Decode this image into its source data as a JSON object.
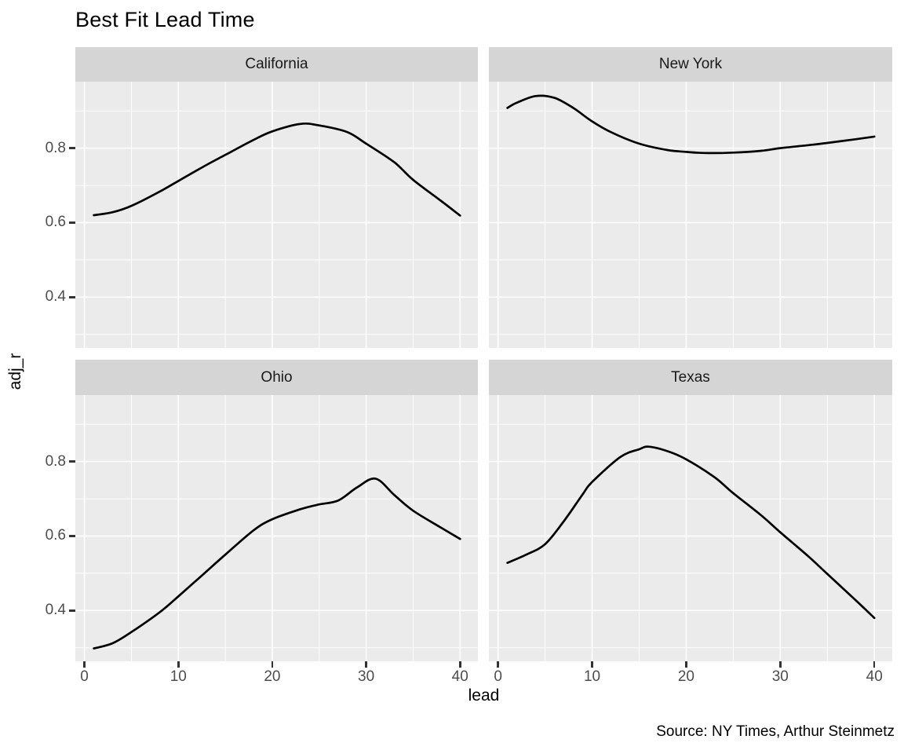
{
  "title": "Best Fit Lead Time",
  "source_note": "Source: NY Times, Arthur Steinmetz",
  "colors": {
    "panel_bg": "#ebebeb",
    "strip_bg": "#d5d5d5",
    "gridline": "#ffffff",
    "line": "#000000",
    "axis_text": "#4d4d4d",
    "tick_mark": "#333333",
    "text": "#000000"
  },
  "chart_data": {
    "type": "line",
    "title": "Best Fit Lead Time",
    "xlabel": "lead",
    "ylabel": "adj_r",
    "grid": true,
    "legend_position": "none",
    "facet_layout": [
      "California",
      "New York",
      "Ohio",
      "Texas"
    ],
    "x_axis": {
      "range": [
        -0.97,
        41.9
      ],
      "major_ticks": [
        0,
        10,
        20,
        30,
        40
      ],
      "major_labels": [
        "0",
        "10",
        "20",
        "30",
        "40"
      ],
      "minor_ticks": [
        5,
        15,
        25,
        35
      ]
    },
    "y_axis": {
      "range": [
        0.2635,
        0.9785
      ],
      "major_ticks": [
        0.8,
        0.6,
        0.4
      ],
      "major_labels": [
        "0.8",
        "0.6",
        "0.4"
      ],
      "minor_ticks": [
        0.9,
        0.7,
        0.5,
        0.3
      ]
    },
    "series": [
      {
        "name": "California",
        "points": [
          [
            1,
            0.62
          ],
          [
            3,
            0.628
          ],
          [
            5,
            0.645
          ],
          [
            8,
            0.683
          ],
          [
            10,
            0.712
          ],
          [
            13,
            0.755
          ],
          [
            15,
            0.782
          ],
          [
            18,
            0.822
          ],
          [
            20,
            0.845
          ],
          [
            23,
            0.865
          ],
          [
            25,
            0.861
          ],
          [
            28,
            0.843
          ],
          [
            30,
            0.812
          ],
          [
            33,
            0.762
          ],
          [
            35,
            0.715
          ],
          [
            38,
            0.658
          ],
          [
            40,
            0.619
          ]
        ]
      },
      {
        "name": "New York",
        "points": [
          [
            1,
            0.908
          ],
          [
            2,
            0.922
          ],
          [
            4,
            0.94
          ],
          [
            6,
            0.935
          ],
          [
            8,
            0.908
          ],
          [
            10,
            0.872
          ],
          [
            12,
            0.843
          ],
          [
            15,
            0.812
          ],
          [
            18,
            0.795
          ],
          [
            20,
            0.79
          ],
          [
            22,
            0.787
          ],
          [
            25,
            0.788
          ],
          [
            28,
            0.793
          ],
          [
            30,
            0.8
          ],
          [
            33,
            0.808
          ],
          [
            35,
            0.814
          ],
          [
            38,
            0.824
          ],
          [
            40,
            0.831
          ]
        ]
      },
      {
        "name": "Ohio",
        "points": [
          [
            1,
            0.298
          ],
          [
            3,
            0.312
          ],
          [
            5,
            0.342
          ],
          [
            8,
            0.395
          ],
          [
            10,
            0.438
          ],
          [
            13,
            0.505
          ],
          [
            15,
            0.55
          ],
          [
            18,
            0.615
          ],
          [
            20,
            0.645
          ],
          [
            23,
            0.672
          ],
          [
            25,
            0.685
          ],
          [
            27,
            0.695
          ],
          [
            29,
            0.73
          ],
          [
            31,
            0.754
          ],
          [
            33,
            0.71
          ],
          [
            35,
            0.668
          ],
          [
            38,
            0.622
          ],
          [
            40,
            0.592
          ]
        ]
      },
      {
        "name": "Texas",
        "points": [
          [
            1,
            0.528
          ],
          [
            3,
            0.55
          ],
          [
            5,
            0.578
          ],
          [
            7,
            0.64
          ],
          [
            9,
            0.712
          ],
          [
            10,
            0.745
          ],
          [
            13,
            0.812
          ],
          [
            15,
            0.833
          ],
          [
            16,
            0.84
          ],
          [
            18,
            0.828
          ],
          [
            20,
            0.806
          ],
          [
            23,
            0.758
          ],
          [
            25,
            0.715
          ],
          [
            28,
            0.655
          ],
          [
            30,
            0.61
          ],
          [
            33,
            0.545
          ],
          [
            35,
            0.498
          ],
          [
            38,
            0.428
          ],
          [
            40,
            0.38
          ]
        ]
      }
    ]
  }
}
